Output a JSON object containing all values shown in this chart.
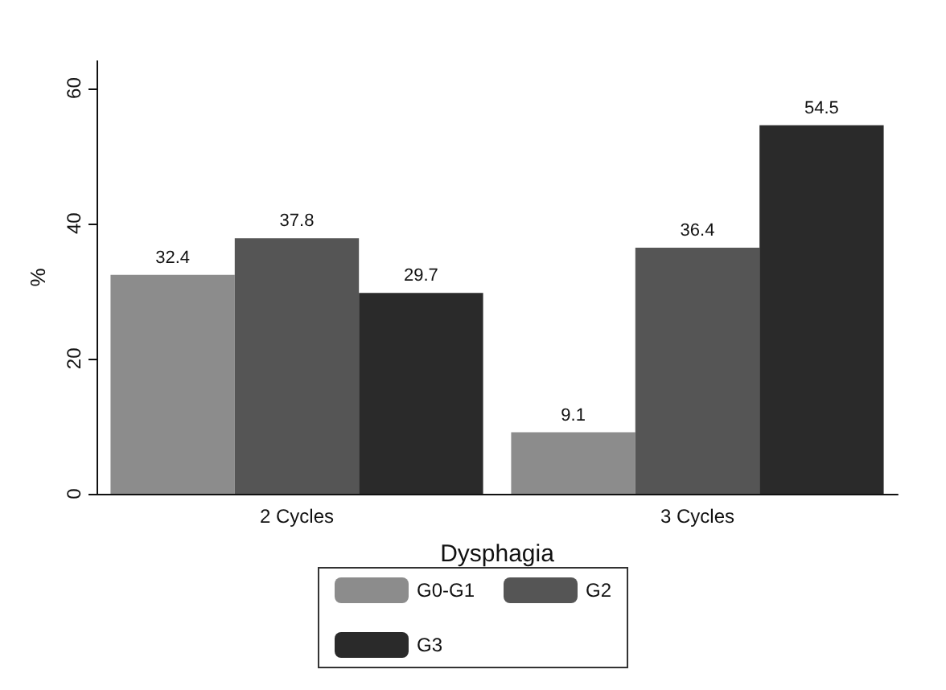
{
  "chart_data": {
    "type": "bar",
    "xlabel": "Dysphagia",
    "ylabel": "%",
    "categories": [
      "2 Cycles",
      "3 Cycles"
    ],
    "series": [
      {
        "name": "G0-G1",
        "color": "#8c8c8c",
        "values": [
          32.4,
          9.1
        ]
      },
      {
        "name": "G2",
        "color": "#555555",
        "values": [
          37.8,
          36.4
        ]
      },
      {
        "name": "G3",
        "color": "#2a2a2a",
        "values": [
          29.7,
          54.5
        ]
      }
    ],
    "ylim": [
      0,
      64
    ],
    "yticks": [
      0,
      20,
      40,
      60
    ],
    "grid": false,
    "legend": "bottom",
    "data_labels": true
  }
}
